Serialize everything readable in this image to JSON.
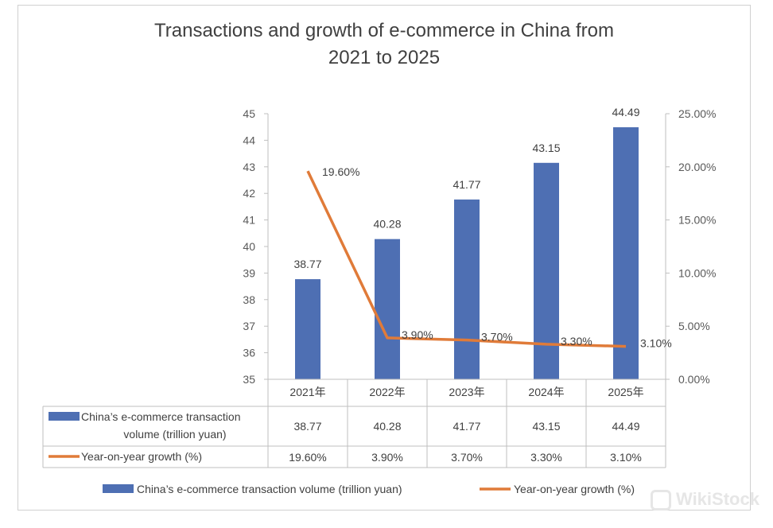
{
  "chart_data": {
    "type": "bar",
    "title_line1": "Transactions and growth of e-commerce in China from",
    "title_line2": "2021 to 2025",
    "categories": [
      "2021年",
      "2022年",
      "2023年",
      "2024年",
      "2025年"
    ],
    "series": [
      {
        "name": "China’s e-commerce transaction volume (trillion yuan)",
        "table_label_line1": "China’s e-commerce transaction",
        "table_label_line2": "volume (trillion yuan)",
        "type": "bar",
        "axis": "left",
        "values": [
          38.77,
          40.28,
          41.77,
          43.15,
          44.49
        ],
        "labels": [
          "38.77",
          "40.28",
          "41.77",
          "43.15",
          "44.49"
        ],
        "color": "#4e6fb3"
      },
      {
        "name": "Year-on-year growth (%)",
        "type": "line",
        "axis": "right",
        "values": [
          19.6,
          3.9,
          3.7,
          3.3,
          3.1
        ],
        "labels": [
          "19.60%",
          "3.90%",
          "3.70%",
          "3.30%",
          "3.10%"
        ],
        "color": "#e07b39"
      }
    ],
    "y_left": {
      "ylim": [
        35,
        45
      ],
      "ticks": [
        "35",
        "36",
        "37",
        "38",
        "39",
        "40",
        "41",
        "42",
        "43",
        "44",
        "45"
      ]
    },
    "y_right": {
      "ylim": [
        0,
        25
      ],
      "ticks": [
        "0.00%",
        "5.00%",
        "10.00%",
        "15.00%",
        "20.00%",
        "25.00%"
      ]
    },
    "data_table": true,
    "legend_position": "bottom",
    "grid": false
  },
  "watermark": {
    "text": "WikiStock",
    "icon": "wikistock-logo-icon"
  }
}
